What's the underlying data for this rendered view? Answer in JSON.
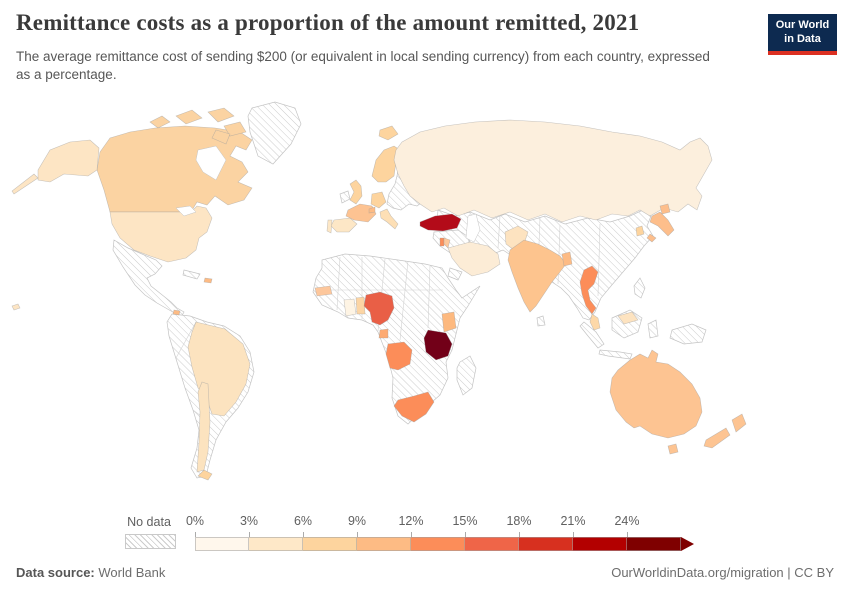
{
  "header": {
    "title": "Remittance costs as a proportion of the amount remitted, 2021",
    "subtitle": "The average remittance cost of sending $200 (or equivalent in local sending currency) from each country, expressed as a percentage.",
    "logo": {
      "line1": "Our World",
      "line2": "in Data",
      "bg_color": "#0d2a50",
      "accent_color": "#dc3022"
    }
  },
  "legend": {
    "no_data_label": "No data",
    "tick_labels": [
      "0%",
      "3%",
      "6%",
      "9%",
      "12%",
      "15%",
      "18%",
      "21%",
      "24%"
    ],
    "bin_colors": [
      "#fff7ec",
      "#fee8c8",
      "#fdd49e",
      "#fdbb84",
      "#fc8d59",
      "#ef6548",
      "#d7301f",
      "#b30000",
      "#7f0000"
    ]
  },
  "footer": {
    "source_label": "Data source:",
    "source_value": "World Bank",
    "right": "OurWorldinData.org/migration | CC BY"
  },
  "map": {
    "regions": {
      "canada": "#fbd3a2",
      "arctic-islands": "#fbd3a2",
      "alaska": "#fde5c4",
      "usa": "#fde5c4",
      "hawaii": "#fde5c4",
      "costa-rica": "#fdbb84",
      "dominican-republic": "#fdbb84",
      "brazil": "#fce3bf",
      "chile": "#fce3bf",
      "chile-south": "#fdd49e",
      "iceland": "#fdd49e",
      "uk": "#fdd49e",
      "norway-sweden": "#fdd49e",
      "germany": "#fdd49e",
      "france": "#fdc392",
      "switzerland": "#fdbb84",
      "spain": "#fde7c6",
      "portugal": "#fde7c6",
      "italy": "#fddfb5",
      "russia": "#fcefdd",
      "turkey": "#b30b19",
      "israel": "#fc8d59",
      "jordan": "#fdc89b",
      "saudi-arabia": "#fcecd6",
      "pakistan": "#fde3c0",
      "india": "#fdc48e",
      "bangladesh": "#fdbb84",
      "thailand": "#fc8d59",
      "malaysia": "#fdd8a8",
      "malaysia-borneo": "#fde3c0",
      "japan": "#fdbe8b",
      "south-korea": "#fdd49e",
      "senegal": "#fdc79c",
      "ghana": "#fef4e4",
      "benin-togo": "#fcd5a4",
      "nigeria-cameroon": "#e95f46",
      "gabon": "#fdaa72",
      "angola": "#fc8d59",
      "kenya": "#fdb97f",
      "tanzania": "#720018",
      "south-africa": "#fc8d59",
      "australia": "#fdc492",
      "tasmania": "#fdc492",
      "new-zealand": "#fdc492"
    }
  },
  "chart_data": {
    "type": "choropleth",
    "title": "Remittance costs as a proportion of the amount remitted, 2021",
    "unit": "%",
    "legend_thresholds": [
      0,
      3,
      6,
      9,
      12,
      15,
      18,
      21,
      24
    ],
    "legend_colors": [
      "#fff7ec",
      "#fee8c8",
      "#fdd49e",
      "#fdbb84",
      "#fc8d59",
      "#ef6548",
      "#d7301f",
      "#b30000",
      "#7f0000"
    ],
    "no_data_style": "hatched",
    "countries": [
      {
        "name": "Canada",
        "value_bin": "6-9%"
      },
      {
        "name": "United States",
        "value_bin": "3-6%"
      },
      {
        "name": "Brazil",
        "value_bin": "3-6%"
      },
      {
        "name": "Chile",
        "value_bin": "3-6%"
      },
      {
        "name": "Costa Rica",
        "value_bin": "9-12%"
      },
      {
        "name": "Dominican Republic",
        "value_bin": "9-12%"
      },
      {
        "name": "Iceland",
        "value_bin": "6-9%"
      },
      {
        "name": "United Kingdom",
        "value_bin": "6-9%"
      },
      {
        "name": "Norway",
        "value_bin": "6-9%"
      },
      {
        "name": "Sweden",
        "value_bin": "6-9%"
      },
      {
        "name": "Germany",
        "value_bin": "6-9%"
      },
      {
        "name": "France",
        "value_bin": "9-12%"
      },
      {
        "name": "Switzerland",
        "value_bin": "9-12%"
      },
      {
        "name": "Spain",
        "value_bin": "3-6%"
      },
      {
        "name": "Portugal",
        "value_bin": "3-6%"
      },
      {
        "name": "Italy",
        "value_bin": "3-6%"
      },
      {
        "name": "Russia",
        "value_bin": "0-3%"
      },
      {
        "name": "Turkey",
        "value_bin": "21-24%"
      },
      {
        "name": "Israel",
        "value_bin": "12-15%"
      },
      {
        "name": "Jordan",
        "value_bin": "9-12%"
      },
      {
        "name": "Saudi Arabia",
        "value_bin": "0-3%"
      },
      {
        "name": "Pakistan",
        "value_bin": "3-6%"
      },
      {
        "name": "India",
        "value_bin": "9-12%"
      },
      {
        "name": "Bangladesh",
        "value_bin": "9-12%"
      },
      {
        "name": "Thailand",
        "value_bin": "12-15%"
      },
      {
        "name": "Malaysia",
        "value_bin": "6-9%"
      },
      {
        "name": "Japan",
        "value_bin": "9-12%"
      },
      {
        "name": "South Korea",
        "value_bin": "6-9%"
      },
      {
        "name": "Senegal",
        "value_bin": "9-12%"
      },
      {
        "name": "Ghana",
        "value_bin": "0-3%"
      },
      {
        "name": "Benin",
        "value_bin": "6-9%"
      },
      {
        "name": "Nigeria",
        "value_bin": "15-18%"
      },
      {
        "name": "Cameroon",
        "value_bin": "15-18%"
      },
      {
        "name": "Gabon",
        "value_bin": "9-12%"
      },
      {
        "name": "Angola",
        "value_bin": "12-15%"
      },
      {
        "name": "Kenya",
        "value_bin": "9-12%"
      },
      {
        "name": "Tanzania",
        "value_bin": "24%+"
      },
      {
        "name": "South Africa",
        "value_bin": "12-15%"
      },
      {
        "name": "Australia",
        "value_bin": "9-12%"
      },
      {
        "name": "New Zealand",
        "value_bin": "9-12%"
      }
    ]
  }
}
